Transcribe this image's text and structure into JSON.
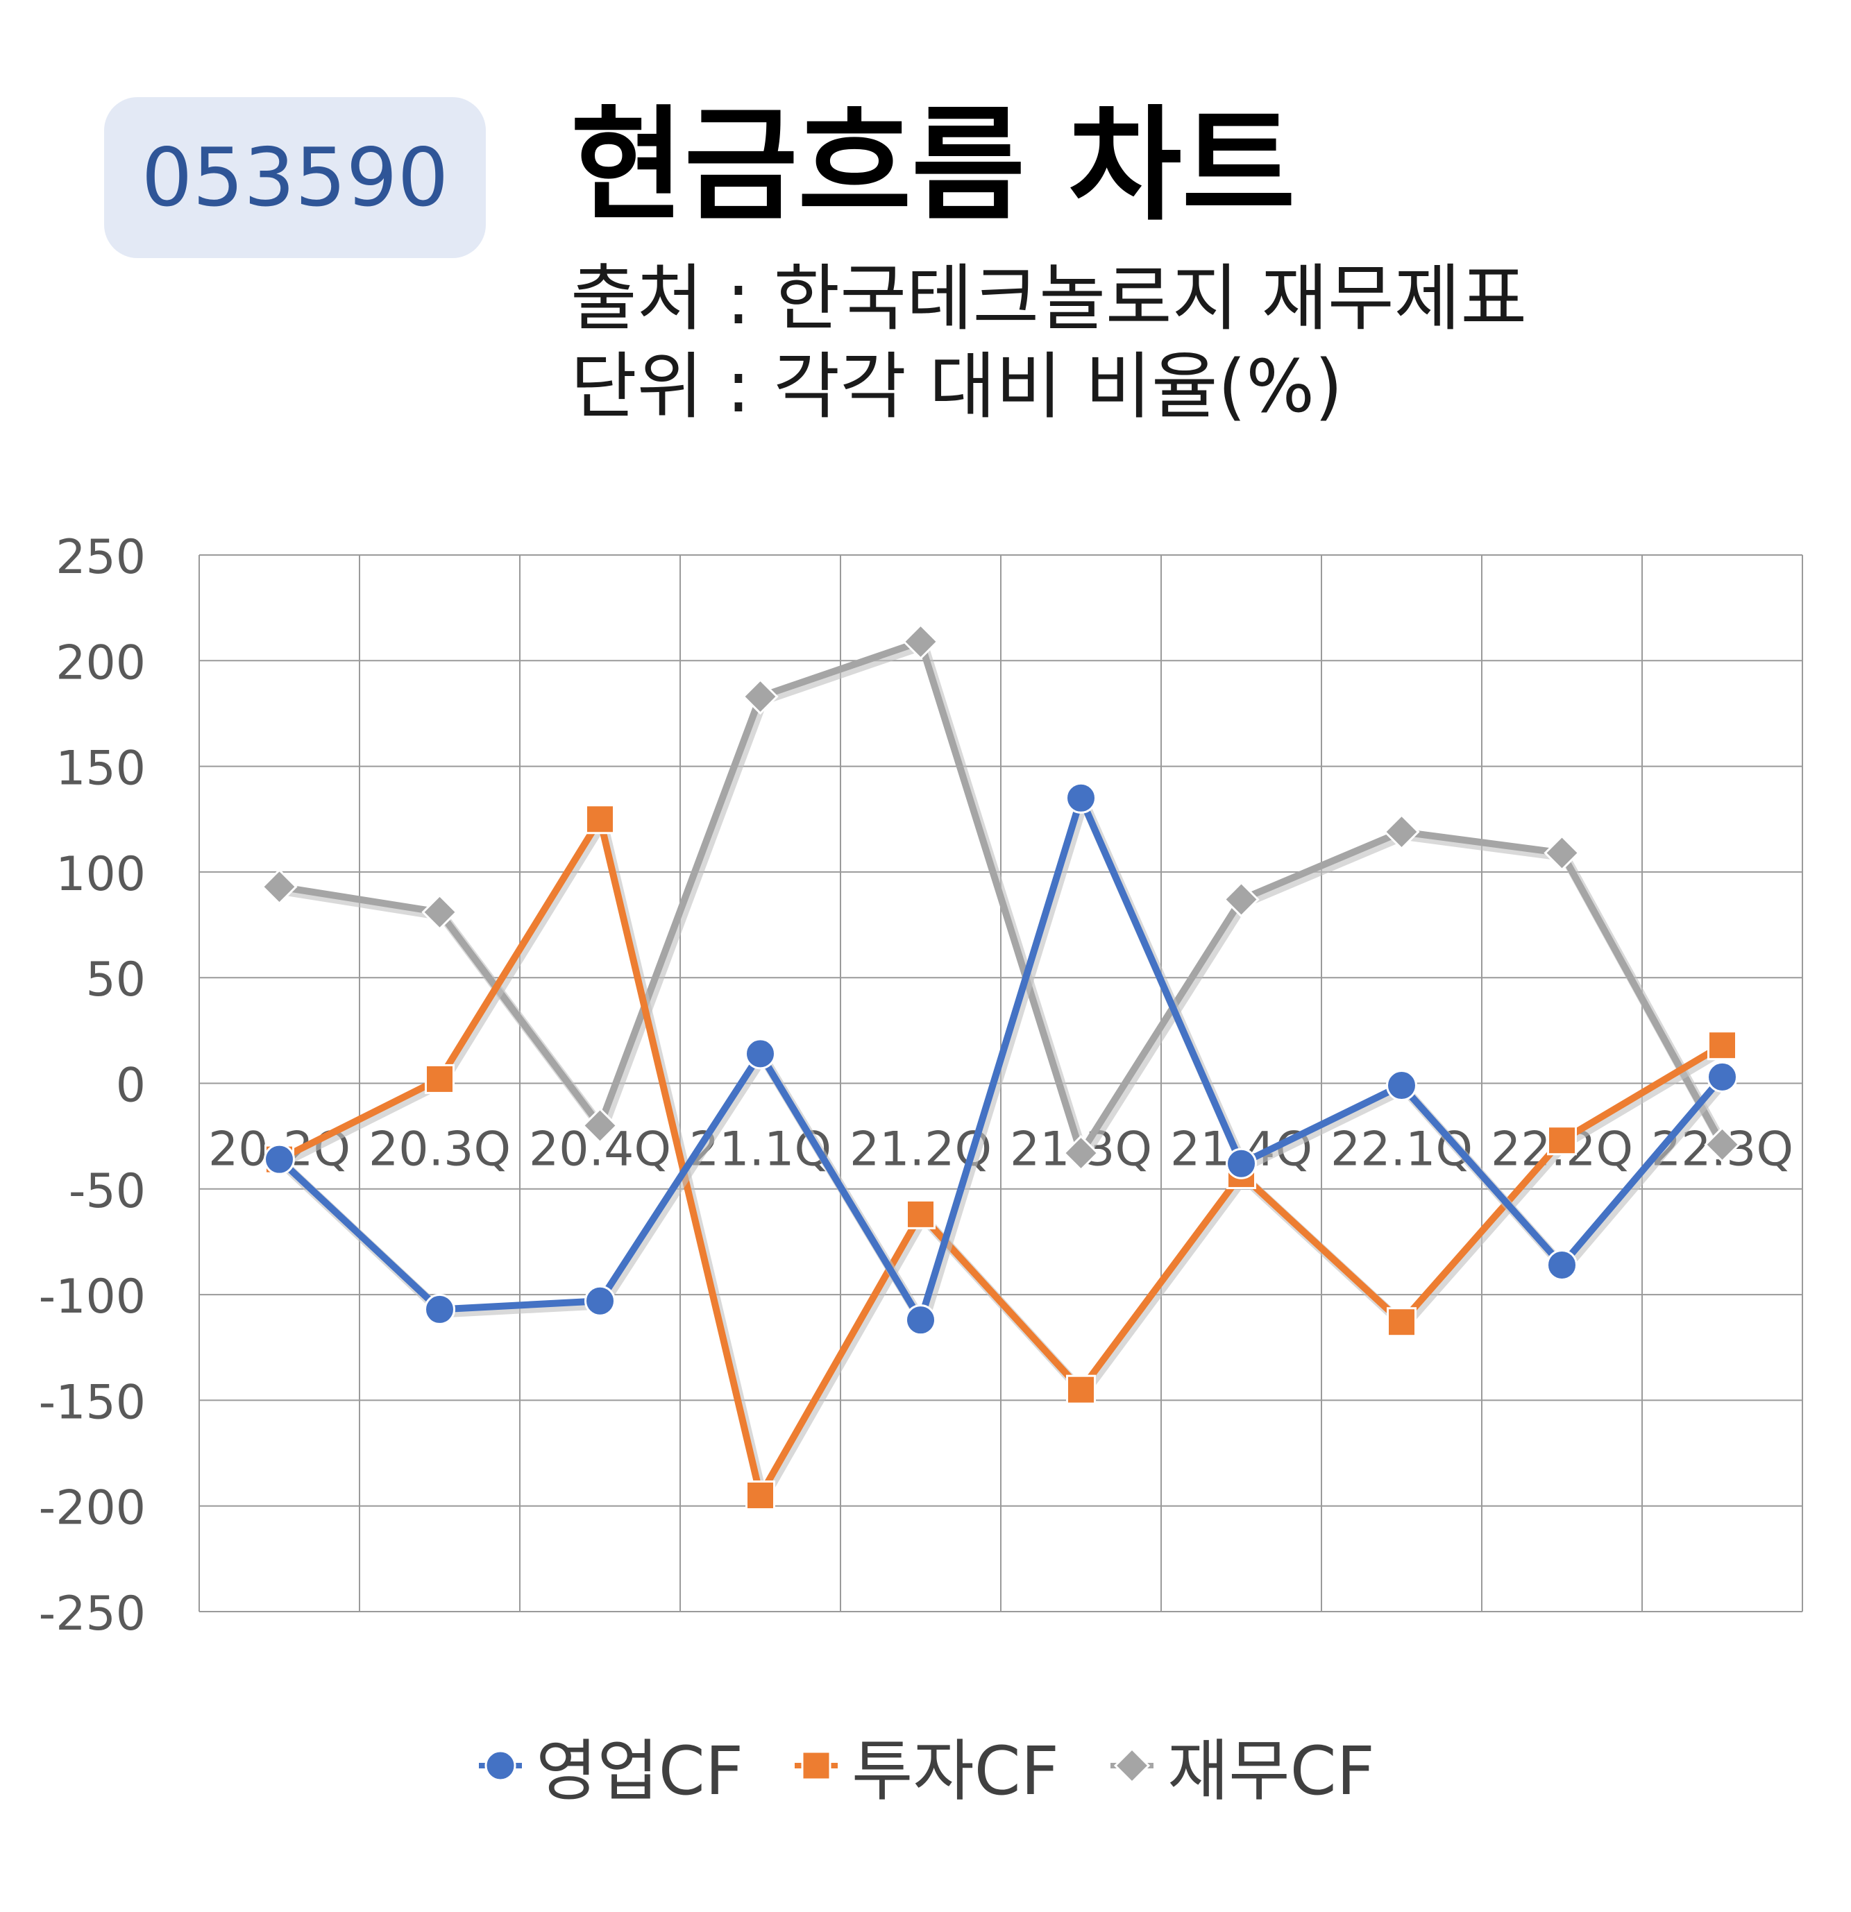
{
  "header": {
    "ticker": "053590",
    "title": "현금흐름 차트",
    "source": "출처 : 한국테크놀로지 재무제표",
    "unit": "단위 : 각각 대비 비율(%)"
  },
  "chart_data": {
    "type": "line",
    "categories": [
      "20.2Q",
      "20.3Q",
      "20.4Q",
      "21.1Q",
      "21.2Q",
      "21.3Q",
      "21.4Q",
      "22.1Q",
      "22.2Q",
      "22.3Q"
    ],
    "ylim": [
      -250,
      250
    ],
    "yticks": [
      250,
      200,
      150,
      100,
      50,
      0,
      -50,
      -100,
      -150,
      -200,
      -250
    ],
    "grid": true,
    "legend_position": "bottom",
    "series": [
      {
        "name": "영업CF",
        "marker": "circle",
        "color": "#4472c4",
        "values": [
          -36,
          -107,
          -103,
          14,
          -112,
          135,
          -38,
          -1,
          -86,
          3
        ]
      },
      {
        "name": "투자CF",
        "marker": "square",
        "color": "#ed7d31",
        "values": [
          -36,
          2,
          125,
          -195,
          -62,
          -145,
          -43,
          -113,
          -27,
          18
        ]
      },
      {
        "name": "재무CF",
        "marker": "diamond",
        "color": "#a5a5a5",
        "values": [
          93,
          81,
          -20,
          183,
          209,
          -33,
          87,
          119,
          109,
          -29
        ]
      }
    ]
  }
}
